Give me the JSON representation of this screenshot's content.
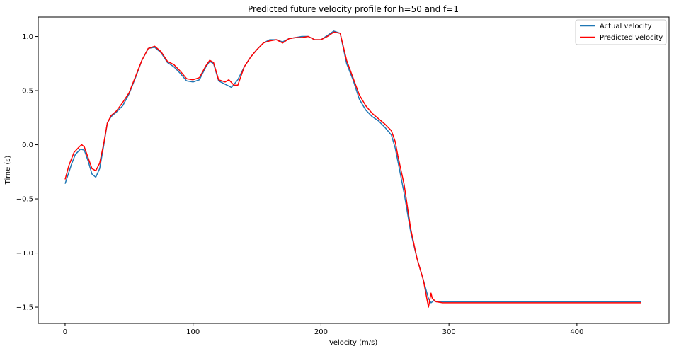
{
  "chart_data": {
    "type": "line",
    "title": "Predicted future velocity profile for h=50 and f=1",
    "xlabel": "Velocity (m/s)",
    "ylabel": "Time (s)",
    "xlim": [
      -21,
      472
    ],
    "ylim": [
      -1.65,
      1.18
    ],
    "xticks": [
      0,
      100,
      200,
      300,
      400
    ],
    "yticks": [
      -1.5,
      -1.0,
      -0.5,
      0.0,
      0.5,
      1.0
    ],
    "xtick_labels": [
      "0",
      "100",
      "200",
      "300",
      "400"
    ],
    "ytick_labels": [
      "−1.5",
      "−1.0",
      "−0.5",
      "0.0",
      "0.5",
      "1.0"
    ],
    "grid": false,
    "legend_position": "top-right",
    "series": [
      {
        "name": "Actual velocity",
        "color": "#1f77b4",
        "x": [
          0,
          5,
          8,
          12,
          15,
          18,
          21,
          24,
          27,
          30,
          33,
          36,
          40,
          45,
          50,
          55,
          60,
          65,
          70,
          75,
          80,
          85,
          90,
          95,
          100,
          105,
          110,
          113,
          116,
          120,
          125,
          130,
          135,
          140,
          145,
          150,
          155,
          160,
          165,
          170,
          175,
          180,
          185,
          190,
          195,
          200,
          205,
          210,
          215,
          220,
          225,
          230,
          235,
          240,
          245,
          250,
          255,
          258,
          260,
          265,
          270,
          275,
          280,
          284,
          286,
          288,
          290,
          300,
          350,
          400,
          450
        ],
        "y": [
          -0.36,
          -0.18,
          -0.09,
          -0.04,
          -0.05,
          -0.15,
          -0.27,
          -0.3,
          -0.22,
          -0.02,
          0.2,
          0.26,
          0.3,
          0.36,
          0.47,
          0.62,
          0.78,
          0.89,
          0.9,
          0.85,
          0.76,
          0.72,
          0.66,
          0.59,
          0.58,
          0.6,
          0.72,
          0.77,
          0.75,
          0.59,
          0.56,
          0.53,
          0.6,
          0.72,
          0.81,
          0.88,
          0.94,
          0.97,
          0.97,
          0.95,
          0.98,
          0.99,
          1.0,
          1.0,
          0.97,
          0.97,
          1.01,
          1.05,
          1.03,
          0.75,
          0.6,
          0.42,
          0.32,
          0.26,
          0.22,
          0.16,
          0.09,
          -0.03,
          -0.15,
          -0.45,
          -0.8,
          -1.05,
          -1.25,
          -1.42,
          -1.46,
          -1.44,
          -1.45,
          -1.45,
          -1.45,
          -1.45,
          -1.45
        ]
      },
      {
        "name": "Predicted velocity",
        "color": "#ff0000",
        "x": [
          0,
          3,
          7,
          11,
          13,
          15,
          18,
          21,
          24,
          27,
          30,
          33,
          36,
          40,
          45,
          50,
          55,
          60,
          65,
          70,
          75,
          80,
          85,
          90,
          95,
          100,
          105,
          110,
          113,
          116,
          120,
          125,
          128,
          132,
          135,
          140,
          145,
          150,
          155,
          160,
          165,
          170,
          175,
          180,
          185,
          190,
          195,
          200,
          205,
          210,
          215,
          220,
          225,
          230,
          235,
          240,
          245,
          250,
          255,
          258,
          260,
          265,
          270,
          275,
          280,
          284,
          286,
          287,
          290,
          295,
          300,
          350,
          400,
          450
        ],
        "y": [
          -0.32,
          -0.19,
          -0.07,
          -0.02,
          0.0,
          -0.02,
          -0.12,
          -0.22,
          -0.24,
          -0.17,
          0.0,
          0.2,
          0.27,
          0.31,
          0.39,
          0.48,
          0.63,
          0.78,
          0.89,
          0.91,
          0.86,
          0.77,
          0.74,
          0.68,
          0.61,
          0.6,
          0.62,
          0.73,
          0.78,
          0.76,
          0.6,
          0.58,
          0.6,
          0.55,
          0.55,
          0.72,
          0.81,
          0.88,
          0.94,
          0.96,
          0.97,
          0.94,
          0.98,
          0.99,
          0.99,
          1.0,
          0.97,
          0.97,
          1.0,
          1.04,
          1.03,
          0.78,
          0.62,
          0.46,
          0.36,
          0.29,
          0.24,
          0.19,
          0.13,
          0.03,
          -0.1,
          -0.37,
          -0.77,
          -1.05,
          -1.25,
          -1.5,
          -1.37,
          -1.42,
          -1.45,
          -1.46,
          -1.46,
          -1.46,
          -1.46,
          -1.46
        ]
      }
    ]
  }
}
